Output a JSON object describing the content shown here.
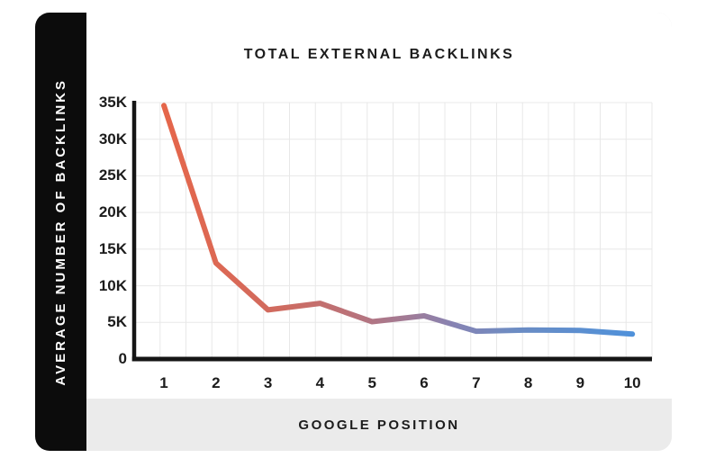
{
  "card": {
    "background": "#ffffff",
    "border_color": "#ececec"
  },
  "sidebar": {
    "background": "#0c0c0c",
    "text_color": "#ffffff"
  },
  "footer": {
    "background": "#ebebeb",
    "text_color": "#1c1c1c"
  },
  "text_color": "#1c1c1c",
  "chart_data": {
    "type": "line",
    "title": "TOTAL EXTERNAL BACKLINKS",
    "xlabel": "GOOGLE POSITION",
    "ylabel": "AVERAGE NUMBER OF BACKLINKS",
    "x": [
      1,
      2,
      3,
      4,
      5,
      6,
      7,
      8,
      9,
      10
    ],
    "series": [
      {
        "name": "Average number of backlinks",
        "values": [
          34600,
          13100,
          6700,
          7600,
          5100,
          5900,
          3800,
          3950,
          3900,
          3400
        ]
      }
    ],
    "xlim": [
      1,
      10
    ],
    "ylim": [
      0,
      35000
    ],
    "ytick_step": 5000,
    "ytick_labels": [
      "0",
      "5K",
      "10K",
      "15K",
      "20K",
      "25K",
      "30K",
      "35K"
    ],
    "grid": true,
    "legend": "none",
    "grid_color": "#e8e8e8",
    "axis_color": "#151515",
    "line_width": 6,
    "line_gradient": [
      {
        "offset": 0,
        "color": "#e5664a"
      },
      {
        "offset": 0.12,
        "color": "#dc6854"
      },
      {
        "offset": 0.25,
        "color": "#cf6b60"
      },
      {
        "offset": 0.4,
        "color": "#ba7279"
      },
      {
        "offset": 0.52,
        "color": "#a17b96"
      },
      {
        "offset": 0.62,
        "color": "#8683b3"
      },
      {
        "offset": 0.75,
        "color": "#6c8cc3"
      },
      {
        "offset": 1,
        "color": "#4f91da"
      }
    ]
  }
}
